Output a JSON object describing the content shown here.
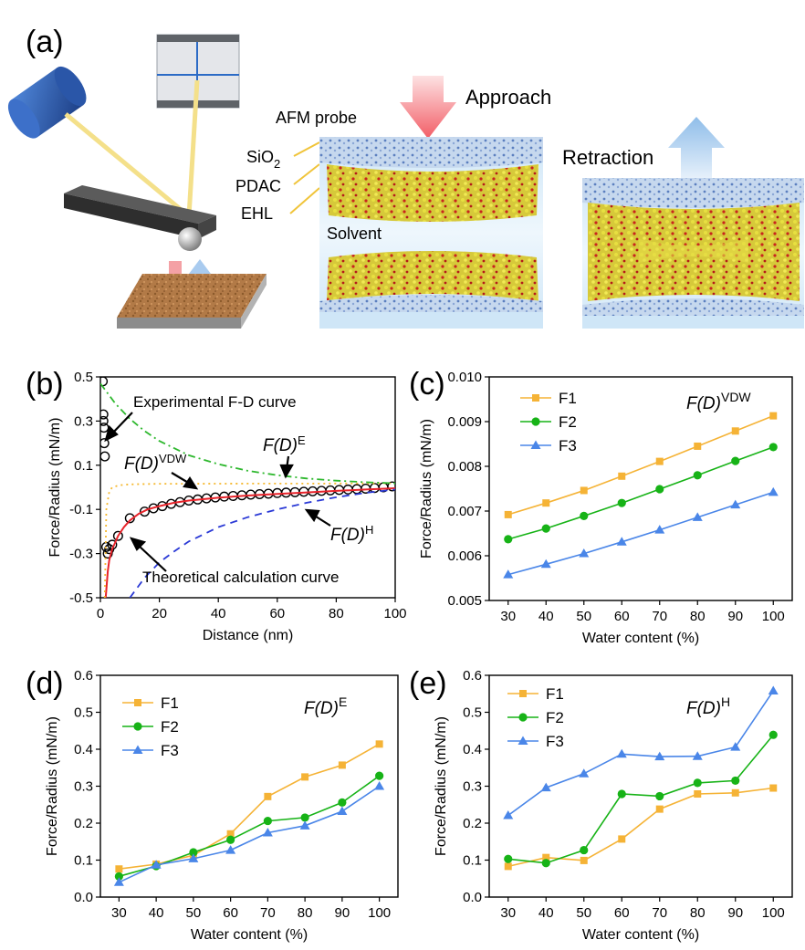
{
  "panel_a": {
    "letter": "(a)",
    "approach": "Approach",
    "retraction": "Retraction",
    "afm_probe": "AFM probe",
    "sio2_main": "SiO",
    "sio2_sub": "2",
    "pdac": "PDAC",
    "ehl": "EHL",
    "solvent": "Solvent",
    "colors": {
      "approach_arrow": "#f4747a",
      "retraction_arrow": "#a9cbef",
      "cantilever": "#3a3a3a",
      "laser_head": "#2f5fb5",
      "substrate": "#b07845"
    }
  },
  "chart_data": [
    {
      "panel": "(b)",
      "type": "line",
      "xlabel": "Distance (nm)",
      "ylabel": "Force/Radius (mN/m)",
      "xlim": [
        0,
        100
      ],
      "ylim": [
        -0.5,
        0.5
      ],
      "xticks": [
        "0",
        "20",
        "40",
        "60",
        "80",
        "100"
      ],
      "yticks": [
        "-0.5",
        "-0.3",
        "-0.1",
        "0.1",
        "0.3",
        "0.5"
      ],
      "annotations": {
        "experimental": "Experimental F-D curve",
        "theoretical": "Theoretical calculation curve",
        "fd_vdw": "F(D)",
        "fd_vdw_sup": "VDW",
        "fd_e": "F(D)",
        "fd_e_sup": "E",
        "fd_h": "F(D)",
        "fd_h_sup": "H"
      },
      "series": [
        {
          "key": "experimental",
          "style": "open-circles",
          "color": "#000000",
          "x": [
            0.8,
            1,
            1,
            1.2,
            1.3,
            1.5,
            2,
            2.5,
            3,
            4,
            6,
            10,
            15,
            18,
            21,
            24,
            27,
            30,
            33,
            36,
            39,
            42,
            45,
            48,
            51,
            54,
            57,
            60,
            63,
            66,
            69,
            72,
            75,
            78,
            81,
            84,
            87,
            90,
            93,
            96,
            99
          ],
          "y": [
            0.48,
            0.33,
            0.3,
            0.27,
            0.2,
            0.14,
            -0.27,
            -0.3,
            -0.28,
            -0.26,
            -0.22,
            -0.14,
            -0.11,
            -0.095,
            -0.085,
            -0.075,
            -0.067,
            -0.06,
            -0.055,
            -0.05,
            -0.046,
            -0.042,
            -0.039,
            -0.036,
            -0.033,
            -0.031,
            -0.029,
            -0.026,
            -0.024,
            -0.022,
            -0.02,
            -0.018,
            -0.016,
            -0.014,
            -0.012,
            -0.01,
            -0.008,
            -0.006,
            -0.003,
            0.0,
            0.004
          ]
        },
        {
          "key": "theoretical",
          "style": "solid",
          "color": "#e8232a",
          "x": [
            1.8,
            2.5,
            3,
            4,
            5,
            6,
            8,
            10,
            13,
            16,
            20,
            25,
            30,
            40,
            50,
            60,
            70,
            80,
            90,
            100
          ],
          "y": [
            -0.5,
            -0.38,
            -0.33,
            -0.28,
            -0.25,
            -0.22,
            -0.18,
            -0.15,
            -0.12,
            -0.1,
            -0.085,
            -0.07,
            -0.06,
            -0.047,
            -0.037,
            -0.03,
            -0.023,
            -0.016,
            -0.01,
            -0.004
          ]
        },
        {
          "key": "vdw",
          "style": "dotted",
          "color": "#f5b82e",
          "x": [
            1.5,
            2,
            3,
            4,
            6,
            8,
            12,
            20,
            30,
            50,
            70,
            100
          ],
          "y": [
            -0.5,
            -0.1,
            -0.02,
            0.0,
            0.008,
            0.012,
            0.014,
            0.016,
            0.016,
            0.017,
            0.017,
            0.018
          ]
        },
        {
          "key": "e",
          "style": "dash-dot",
          "color": "#2eb82e",
          "x": [
            0,
            5,
            10,
            15,
            20,
            30,
            40,
            50,
            60,
            70,
            80,
            90,
            100
          ],
          "y": [
            0.47,
            0.38,
            0.31,
            0.255,
            0.21,
            0.145,
            0.105,
            0.075,
            0.055,
            0.04,
            0.03,
            0.023,
            0.018
          ]
        },
        {
          "key": "h",
          "style": "dashed",
          "color": "#2b3ad6",
          "x": [
            10,
            15,
            20,
            25,
            30,
            40,
            50,
            60,
            70,
            80,
            90,
            100
          ],
          "y": [
            -0.5,
            -0.41,
            -0.34,
            -0.29,
            -0.245,
            -0.18,
            -0.135,
            -0.1,
            -0.07,
            -0.045,
            -0.025,
            -0.01
          ]
        }
      ]
    },
    {
      "panel": "(c)",
      "type": "line",
      "title_main": "F(D)",
      "title_sup": "VDW",
      "xlabel": "Water content (%)",
      "ylabel": "Force/Radius (mN/m)",
      "xlim": [
        25,
        105
      ],
      "ylim": [
        0.005,
        0.01
      ],
      "x": [
        30,
        40,
        50,
        60,
        70,
        80,
        90,
        100
      ],
      "xticks": [
        "30",
        "40",
        "50",
        "60",
        "70",
        "80",
        "90",
        "100"
      ],
      "yticks": [
        "0.005",
        "0.006",
        "0.007",
        "0.008",
        "0.009",
        "0.010"
      ],
      "series": [
        {
          "name": "F1",
          "color": "#f5b336",
          "marker": "square",
          "values": [
            0.00692,
            0.00718,
            0.00746,
            0.00778,
            0.00811,
            0.00845,
            0.00879,
            0.00913
          ]
        },
        {
          "name": "F2",
          "color": "#17b317",
          "marker": "circle",
          "values": [
            0.00637,
            0.00661,
            0.00689,
            0.00718,
            0.00749,
            0.0078,
            0.00812,
            0.00843
          ]
        },
        {
          "name": "F3",
          "color": "#4a86e8",
          "marker": "triangle",
          "values": [
            0.00558,
            0.00581,
            0.00605,
            0.00631,
            0.00658,
            0.00686,
            0.00714,
            0.00742
          ]
        }
      ]
    },
    {
      "panel": "(d)",
      "type": "line",
      "title_main": "F(D)",
      "title_sup": "E",
      "xlabel": "Water content (%)",
      "ylabel": "Force/Radius (mN/m)",
      "xlim": [
        25,
        105
      ],
      "ylim": [
        0,
        0.6
      ],
      "x": [
        30,
        40,
        50,
        60,
        70,
        80,
        90,
        100
      ],
      "xticks": [
        "30",
        "40",
        "50",
        "60",
        "70",
        "80",
        "90",
        "100"
      ],
      "yticks": [
        "0.0",
        "0.1",
        "0.2",
        "0.3",
        "0.4",
        "0.5",
        "0.6"
      ],
      "series": [
        {
          "name": "F1",
          "color": "#f5b336",
          "marker": "square",
          "values": [
            0.076,
            0.089,
            0.113,
            0.171,
            0.272,
            0.325,
            0.357,
            0.414
          ]
        },
        {
          "name": "F2",
          "color": "#17b317",
          "marker": "circle",
          "values": [
            0.056,
            0.084,
            0.121,
            0.155,
            0.206,
            0.215,
            0.256,
            0.328
          ]
        },
        {
          "name": "F3",
          "color": "#4a86e8",
          "marker": "triangle",
          "values": [
            0.04,
            0.087,
            0.104,
            0.127,
            0.174,
            0.193,
            0.232,
            0.3
          ]
        }
      ]
    },
    {
      "panel": "(e)",
      "type": "line",
      "title_main": "F(D)",
      "title_sup": "H",
      "xlabel": "Water content (%)",
      "ylabel": "Force/Radius (mN/m)",
      "xlim": [
        25,
        105
      ],
      "ylim": [
        0,
        0.6
      ],
      "x": [
        30,
        40,
        50,
        60,
        70,
        80,
        90,
        100
      ],
      "xticks": [
        "30",
        "40",
        "50",
        "60",
        "70",
        "80",
        "90",
        "100"
      ],
      "yticks": [
        "0.0",
        "0.1",
        "0.2",
        "0.3",
        "0.4",
        "0.5",
        "0.6"
      ],
      "series": [
        {
          "name": "F1",
          "color": "#f5b336",
          "marker": "square",
          "values": [
            0.083,
            0.107,
            0.099,
            0.157,
            0.238,
            0.279,
            0.282,
            0.295
          ]
        },
        {
          "name": "F2",
          "color": "#17b317",
          "marker": "circle",
          "values": [
            0.103,
            0.092,
            0.127,
            0.279,
            0.273,
            0.309,
            0.315,
            0.439
          ]
        },
        {
          "name": "F3",
          "color": "#4a86e8",
          "marker": "triangle",
          "values": [
            0.221,
            0.296,
            0.334,
            0.387,
            0.38,
            0.381,
            0.406,
            0.558
          ]
        }
      ]
    }
  ]
}
